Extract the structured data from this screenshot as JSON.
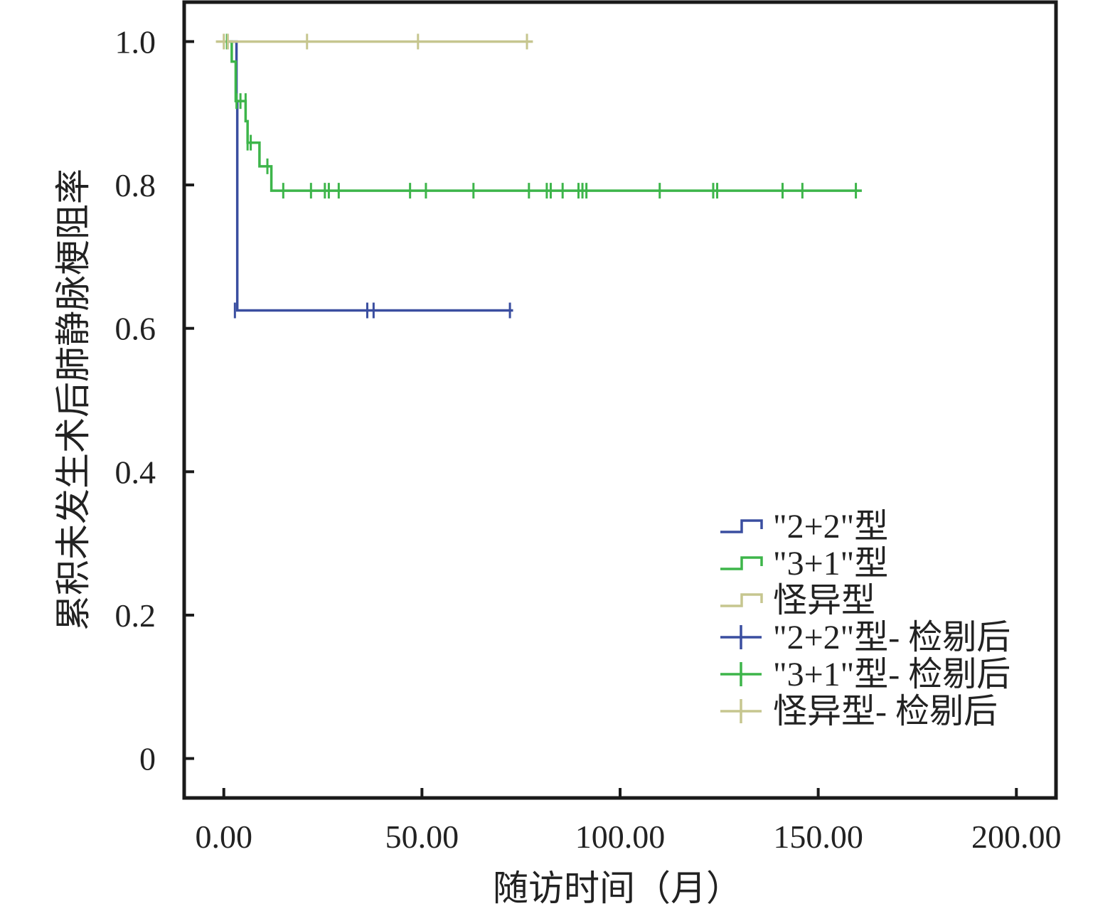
{
  "chart_data": {
    "type": "line",
    "title": "",
    "xlabel": "随访时间（月）",
    "ylabel": "累积未发生术后肺静脉梗阻率",
    "xlim": [
      -10,
      210
    ],
    "ylim": [
      -0.055,
      1.055
    ],
    "x_ticks": [
      0,
      50,
      100,
      150,
      200
    ],
    "x_tick_labels": [
      "0.00",
      "50.00",
      "100.00",
      "150.00",
      "200.00"
    ],
    "y_ticks": [
      0,
      0.2,
      0.4,
      0.6,
      0.8,
      1.0
    ],
    "y_tick_labels": [
      "0",
      "0.2",
      "0.4",
      "0.6",
      "0.8",
      "1.0"
    ],
    "grid": false,
    "legend_position": "bottom-right",
    "series": [
      {
        "name": "\"2+2\"型",
        "color": "#3a4ea0",
        "steps": [
          [
            0.5,
            1.0
          ],
          [
            3.2,
            0.917
          ],
          [
            3.4,
            0.625
          ],
          [
            73,
            0.625
          ]
        ],
        "censored_name": "\"2+2\"型- 检剔后",
        "censored": [
          [
            2.8,
            0.625
          ],
          [
            36.2,
            0.625
          ],
          [
            37.8,
            0.625
          ],
          [
            72.2,
            0.625
          ]
        ]
      },
      {
        "name": "\"3+1\"型",
        "color": "#3db54a",
        "steps": [
          [
            1.5,
            1.0
          ],
          [
            2.0,
            0.972
          ],
          [
            3.0,
            0.917
          ],
          [
            5.5,
            0.889
          ],
          [
            6.0,
            0.859
          ],
          [
            9.0,
            0.826
          ],
          [
            12.0,
            0.792
          ],
          [
            161,
            0.792
          ]
        ],
        "censored_name": "\"3+1\"型- 检剔后",
        "censored": [
          [
            0.8,
            1.0
          ],
          [
            3.2,
            0.917
          ],
          [
            4.2,
            0.917
          ],
          [
            5.5,
            0.917
          ],
          [
            6.0,
            0.859
          ],
          [
            6.8,
            0.859
          ],
          [
            11.0,
            0.826
          ],
          [
            15.0,
            0.792
          ],
          [
            22.0,
            0.792
          ],
          [
            25.5,
            0.792
          ],
          [
            26.5,
            0.792
          ],
          [
            29.0,
            0.792
          ],
          [
            47.0,
            0.792
          ],
          [
            51.0,
            0.792
          ],
          [
            63.0,
            0.792
          ],
          [
            77.0,
            0.792
          ],
          [
            81.5,
            0.792
          ],
          [
            82.5,
            0.792
          ],
          [
            85.5,
            0.792
          ],
          [
            89.5,
            0.792
          ],
          [
            90.5,
            0.792
          ],
          [
            91.5,
            0.792
          ],
          [
            110.0,
            0.792
          ],
          [
            123.5,
            0.792
          ],
          [
            124.5,
            0.792
          ],
          [
            141.0,
            0.792
          ],
          [
            146.0,
            0.792
          ],
          [
            159.5,
            0.792
          ]
        ]
      },
      {
        "name": "怪异型",
        "color": "#c6c68f",
        "steps": [
          [
            -2,
            1.0
          ],
          [
            78,
            1.0
          ]
        ],
        "censored_name": "怪异型- 检剔后",
        "censored": [
          [
            0.0,
            1.0
          ],
          [
            1.0,
            1.0
          ],
          [
            21.0,
            1.0
          ],
          [
            49.0,
            1.0
          ],
          [
            76.5,
            1.0
          ]
        ]
      }
    ]
  }
}
